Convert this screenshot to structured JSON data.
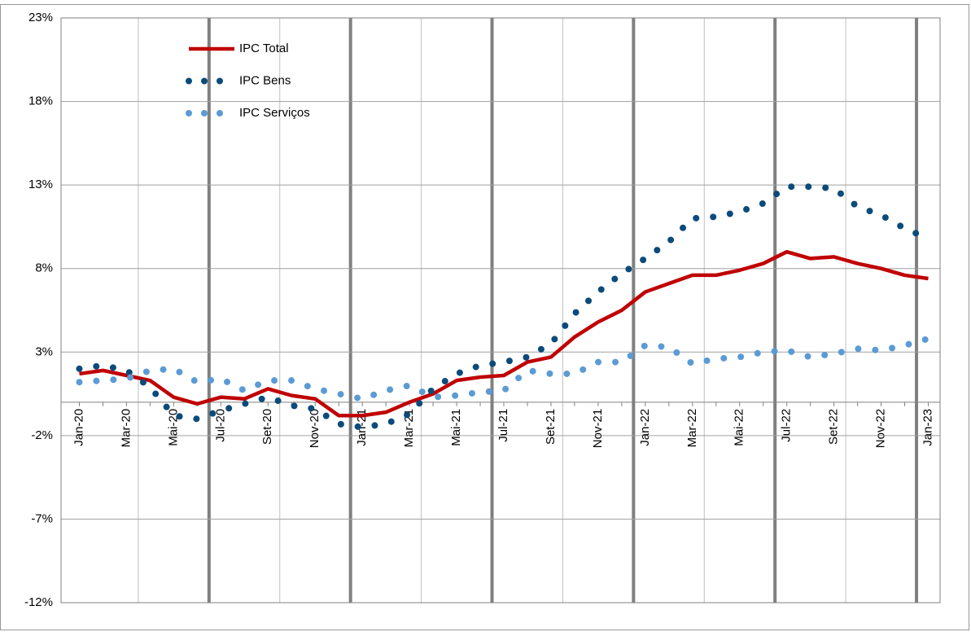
{
  "chart_data": {
    "type": "line",
    "categories": [
      "Jan-20",
      null,
      "Mar-20",
      null,
      "Mai-20",
      null,
      "Jul-20",
      null,
      "Set-20",
      null,
      "Nov-20",
      null,
      "Jan-21",
      null,
      "Mar-21",
      null,
      "Mai-21",
      null,
      "Jul-21",
      null,
      "Set-21",
      null,
      "Nov-21",
      null,
      "Jan-22",
      null,
      "Mar-22",
      null,
      "Mai-22",
      null,
      "Jul-22",
      null,
      "Set-22",
      null,
      "Nov-22",
      null,
      "Jan-23"
    ],
    "series": [
      {
        "name": "IPC Total",
        "color": "#c00000",
        "style": "solid",
        "values": [
          1.7,
          1.9,
          1.6,
          1.3,
          0.3,
          -0.1,
          0.3,
          0.2,
          0.8,
          0.4,
          0.2,
          -0.8,
          -0.8,
          -0.6,
          0.0,
          0.5,
          1.3,
          1.5,
          1.6,
          2.4,
          2.7,
          3.9,
          4.8,
          5.5,
          6.6,
          7.1,
          7.6,
          7.6,
          7.9,
          8.3,
          9.0,
          8.6,
          8.7,
          8.3,
          8.0,
          7.6,
          7.4
        ]
      },
      {
        "name": "IPC Bens",
        "color": "#0b4b7a",
        "style": "dotted",
        "values": [
          2.0,
          2.2,
          1.9,
          0.9,
          -0.8,
          -1.0,
          -0.5,
          -0.1,
          0.3,
          -0.2,
          -0.4,
          -1.3,
          -1.5,
          -1.3,
          -0.7,
          0.8,
          1.7,
          2.2,
          2.4,
          2.7,
          3.5,
          5.3,
          6.6,
          7.7,
          8.6,
          9.6,
          11.0,
          11.1,
          11.4,
          11.9,
          12.9,
          12.9,
          12.8,
          11.7,
          11.2,
          10.4,
          9.8
        ]
      },
      {
        "name": "IPC Serviços",
        "color": "#5b9bd5",
        "style": "dotted",
        "values": [
          1.2,
          1.3,
          1.4,
          1.9,
          2.0,
          1.2,
          1.4,
          0.7,
          1.3,
          1.3,
          0.8,
          0.5,
          0.2,
          0.7,
          1.0,
          0.3,
          0.4,
          0.6,
          0.7,
          1.9,
          1.7,
          1.7,
          2.4,
          2.4,
          3.4,
          3.3,
          2.3,
          2.6,
          2.7,
          3.0,
          3.1,
          2.7,
          2.9,
          3.2,
          3.1,
          3.4,
          3.8
        ]
      }
    ],
    "ylim": [
      -12,
      23
    ],
    "yticks": [
      {
        "value": -12,
        "label": "-12%"
      },
      {
        "value": -7,
        "label": "-7%"
      },
      {
        "value": -2,
        "label": "-2%"
      },
      {
        "value": 3,
        "label": "3%"
      },
      {
        "value": 8,
        "label": "8%"
      },
      {
        "value": 13,
        "label": "13%"
      },
      {
        "value": 18,
        "label": "18%"
      },
      {
        "value": 23,
        "label": "23%"
      }
    ],
    "grid": true,
    "legend": "upper left"
  }
}
